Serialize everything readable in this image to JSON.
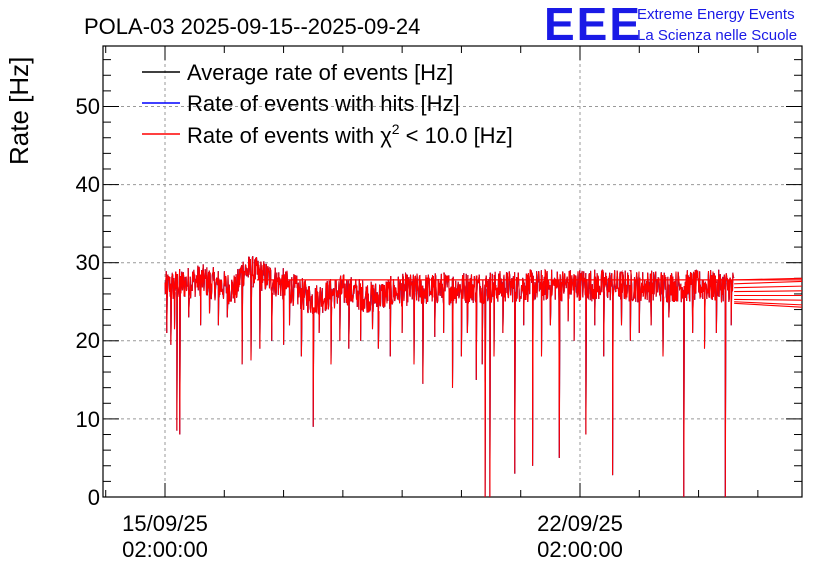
{
  "chart_data": {
    "type": "line",
    "title": "POLA-03 2025-09-15--2025-09-24",
    "ylabel": "Rate [Hz]",
    "xlabel": "",
    "ylim": [
      0,
      57
    ],
    "y_ticks": [
      "0",
      "10",
      "20",
      "30",
      "40",
      "50"
    ],
    "x_ticks": [
      {
        "date": "15/09/25",
        "time": "02:00:00",
        "day": 0
      },
      {
        "date": "22/09/25",
        "time": "02:00:00",
        "day": 7
      }
    ],
    "xlim_days": [
      -1.03,
      10.8
    ],
    "grid": true,
    "legend_position": "top-left",
    "series": [
      {
        "name": "Average rate of events [Hz]",
        "color": "#000000",
        "baseline": 27
      },
      {
        "name": "Rate of events with hits [Hz]",
        "color": "#0000ff",
        "baseline": 27
      },
      {
        "name": "Rate of events with χ² < 10.0 [Hz]",
        "color": "#ff0000",
        "baseline": 27
      }
    ],
    "legend": {
      "line1": "Average rate of events [Hz]",
      "line2": "Rate of events with hits [Hz]",
      "line3_pre": "Rate of events with χ",
      "line3_sup": "2",
      "line3_post": " < 10.0 [Hz]"
    },
    "trend": [
      {
        "day": 0.0,
        "y": 26.8
      },
      {
        "day": 0.6,
        "y": 27.8
      },
      {
        "day": 1.2,
        "y": 26.5
      },
      {
        "day": 1.3,
        "y": 29.0
      },
      {
        "day": 1.5,
        "y": 28.8
      },
      {
        "day": 2.0,
        "y": 27.2
      },
      {
        "day": 2.5,
        "y": 25.2
      },
      {
        "day": 3.0,
        "y": 26.5
      },
      {
        "day": 3.5,
        "y": 25.5
      },
      {
        "day": 4.0,
        "y": 26.5
      },
      {
        "day": 5.0,
        "y": 26.8
      },
      {
        "day": 6.0,
        "y": 27.0
      },
      {
        "day": 7.0,
        "y": 27.2
      },
      {
        "day": 8.0,
        "y": 27.0
      },
      {
        "day": 9.6,
        "y": 27.0
      }
    ],
    "dips": [
      {
        "day": 0.03,
        "y": 21.0
      },
      {
        "day": 0.1,
        "y": 19.5
      },
      {
        "day": 0.16,
        "y": 21.5
      },
      {
        "day": 0.2,
        "y": 8.5
      },
      {
        "day": 0.25,
        "y": 8.0
      },
      {
        "day": 0.4,
        "y": 23.0
      },
      {
        "day": 0.6,
        "y": 22.0
      },
      {
        "day": 0.75,
        "y": 23.5
      },
      {
        "day": 0.9,
        "y": 22.0
      },
      {
        "day": 1.05,
        "y": 23.0
      },
      {
        "day": 1.3,
        "y": 17.0
      },
      {
        "day": 1.45,
        "y": 17.5
      },
      {
        "day": 1.6,
        "y": 19.0
      },
      {
        "day": 1.8,
        "y": 20.0
      },
      {
        "day": 2.0,
        "y": 19.5
      },
      {
        "day": 2.1,
        "y": 22.0
      },
      {
        "day": 2.3,
        "y": 18.0
      },
      {
        "day": 2.5,
        "y": 9.0
      },
      {
        "day": 2.6,
        "y": 21.0
      },
      {
        "day": 2.8,
        "y": 17.0
      },
      {
        "day": 2.95,
        "y": 20.0
      },
      {
        "day": 3.1,
        "y": 19.0
      },
      {
        "day": 3.3,
        "y": 20.0
      },
      {
        "day": 3.5,
        "y": 21.5
      },
      {
        "day": 3.6,
        "y": 19.0
      },
      {
        "day": 3.8,
        "y": 18.0
      },
      {
        "day": 4.0,
        "y": 21.0
      },
      {
        "day": 4.2,
        "y": 17.0
      },
      {
        "day": 4.35,
        "y": 14.5
      },
      {
        "day": 4.55,
        "y": 20.5
      },
      {
        "day": 4.7,
        "y": 21.0
      },
      {
        "day": 4.85,
        "y": 14.0
      },
      {
        "day": 5.0,
        "y": 18.0
      },
      {
        "day": 5.1,
        "y": 21.0
      },
      {
        "day": 5.25,
        "y": 15.0
      },
      {
        "day": 5.35,
        "y": 17.0
      },
      {
        "day": 5.4,
        "y": 0.0
      },
      {
        "day": 5.48,
        "y": 0.0
      },
      {
        "day": 5.55,
        "y": 18.0
      },
      {
        "day": 5.7,
        "y": 21.0
      },
      {
        "day": 5.9,
        "y": 3.0
      },
      {
        "day": 6.05,
        "y": 22.0
      },
      {
        "day": 6.2,
        "y": 4.0
      },
      {
        "day": 6.35,
        "y": 18.0
      },
      {
        "day": 6.5,
        "y": 22.0
      },
      {
        "day": 6.65,
        "y": 5.0
      },
      {
        "day": 6.8,
        "y": 22.5
      },
      {
        "day": 6.9,
        "y": 20.0
      },
      {
        "day": 7.1,
        "y": 8.0
      },
      {
        "day": 7.25,
        "y": 22.0
      },
      {
        "day": 7.4,
        "y": 18.0
      },
      {
        "day": 7.55,
        "y": 2.8
      },
      {
        "day": 7.7,
        "y": 22.0
      },
      {
        "day": 7.85,
        "y": 20.0
      },
      {
        "day": 8.0,
        "y": 21.0
      },
      {
        "day": 8.2,
        "y": 22.0
      },
      {
        "day": 8.4,
        "y": 18.0
      },
      {
        "day": 8.5,
        "y": 23.0
      },
      {
        "day": 8.75,
        "y": 0.0
      },
      {
        "day": 8.9,
        "y": 21.0
      },
      {
        "day": 9.1,
        "y": 19.0
      },
      {
        "day": 9.3,
        "y": 21.0
      },
      {
        "day": 9.45,
        "y": 0.0
      },
      {
        "day": 9.55,
        "y": 22.0
      }
    ],
    "tail_lines": [
      {
        "from_day": 9.6,
        "from_y": 27.8,
        "to_y": 28.0
      },
      {
        "from_day": 9.6,
        "from_y": 27.3,
        "to_y": 27.6
      },
      {
        "from_day": 9.6,
        "from_y": 26.8,
        "to_y": 27.0
      },
      {
        "from_day": 9.6,
        "from_y": 26.3,
        "to_y": 26.4
      },
      {
        "from_day": 9.6,
        "from_y": 25.8,
        "to_y": 25.8
      },
      {
        "from_day": 9.6,
        "from_y": 25.3,
        "to_y": 25.2
      },
      {
        "from_day": 9.6,
        "from_y": 25.0,
        "to_y": 24.6
      },
      {
        "from_day": 9.6,
        "from_y": 24.8,
        "to_y": 24.3
      }
    ],
    "flat_line": {
      "from_day": 1.55,
      "to_day": 10.8,
      "y": 27.8
    }
  },
  "brand": {
    "logo_text": "EEE",
    "line1": "Extreme Energy Events",
    "line2": "La Scienza nelle Scuole",
    "color": "#1a1ae6"
  }
}
